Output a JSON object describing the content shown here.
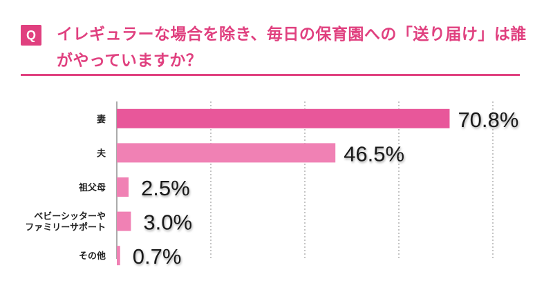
{
  "question": {
    "badge": "Q",
    "text": "イレギュラーな場合を除き、毎日の保育園への「送り届け」は誰がやっていますか？"
  },
  "colors": {
    "accent": "#e0407f",
    "bar_primary": "#e8579a",
    "bar_secondary": "#f081b4",
    "grid": "#8a8a8a",
    "label_text": "#222222"
  },
  "chart_data": {
    "type": "bar",
    "orientation": "horizontal",
    "categories": [
      [
        "妻"
      ],
      [
        "夫"
      ],
      [
        "祖父母"
      ],
      [
        "ベビーシッターや",
        "ファミリーサポート"
      ],
      [
        "その他"
      ]
    ],
    "values": [
      70.8,
      46.5,
      2.5,
      3.0,
      0.7
    ],
    "value_labels": [
      "70.8%",
      "46.5%",
      "2.5%",
      "3.0%",
      "0.7%"
    ],
    "xlim": [
      0,
      80
    ],
    "grid": "vertical dashed",
    "legend": "none"
  }
}
